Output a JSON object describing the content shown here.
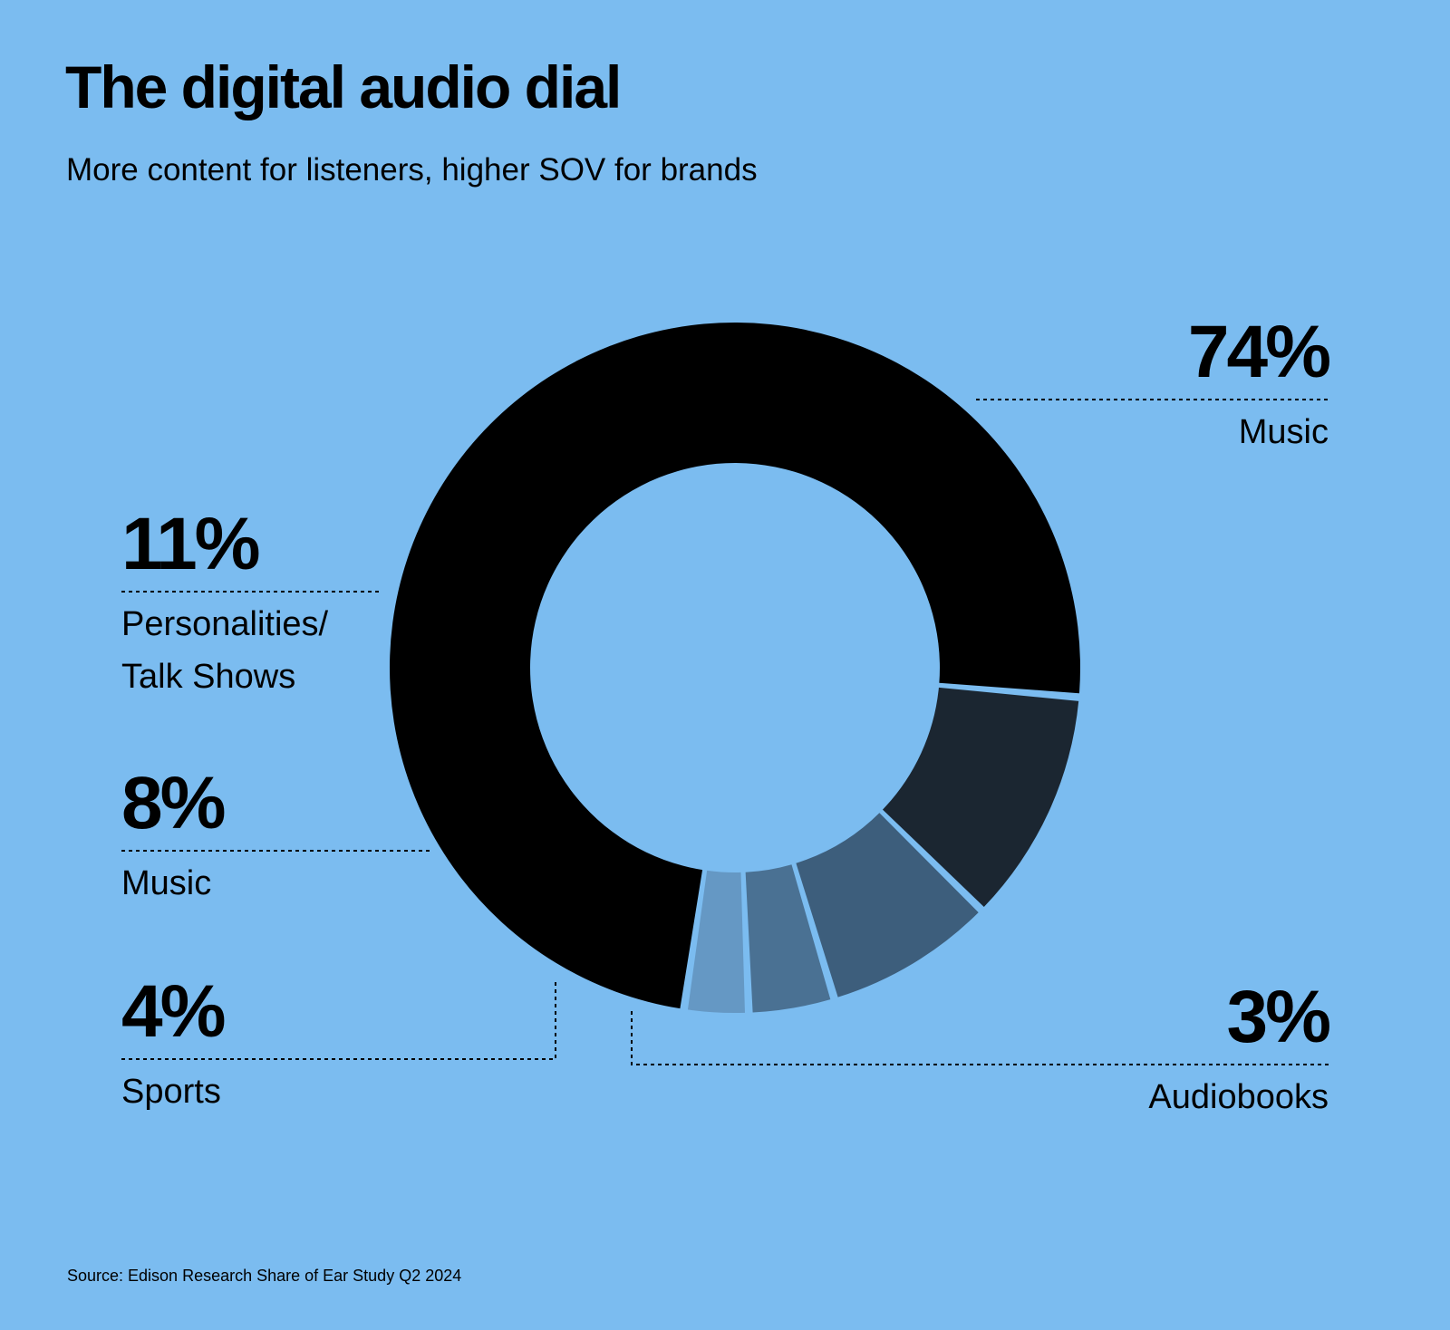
{
  "header": {
    "title": "The digital audio dial",
    "subtitle": "More content for listeners, higher SOV for brands"
  },
  "footer": {
    "source": "Source: Edison Research Share of Ear Study Q2 2024"
  },
  "labels": {
    "music_main": {
      "pct": "74%",
      "name": "Music"
    },
    "talk": {
      "pct": "11%",
      "name_line1": "Personalities/",
      "name_line2": "Talk Shows"
    },
    "music_small": {
      "pct": "8%",
      "name": "Music"
    },
    "sports": {
      "pct": "4%",
      "name": "Sports"
    },
    "audiobooks": {
      "pct": "3%",
      "name": "Audiobooks"
    }
  },
  "colors": {
    "background": "#7bbcf0",
    "music_main": "#000000",
    "talk": "#1b2631",
    "music_small": "#3d5e7c",
    "sports": "#4a7193",
    "audiobooks": "#6598c4"
  },
  "chart_data": {
    "type": "pie",
    "subtype": "donut",
    "title": "The digital audio dial",
    "subtitle": "More content for listeners, higher SOV for brands",
    "categories": [
      "Music",
      "Personalities/Talk Shows",
      "Music",
      "Sports",
      "Audiobooks"
    ],
    "values": [
      74,
      11,
      8,
      4,
      3
    ],
    "unit": "%",
    "colors": [
      "#000000",
      "#1b2631",
      "#3d5e7c",
      "#4a7193",
      "#6598c4"
    ],
    "source": "Source: Edison Research Share of Ear Study Q2 2024",
    "legend": "direct labels with dotted leader lines"
  }
}
